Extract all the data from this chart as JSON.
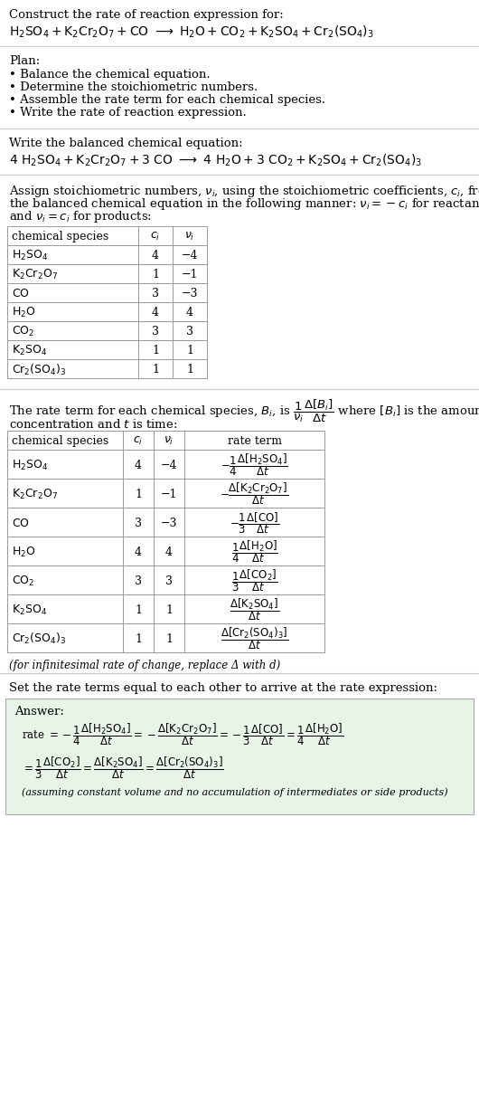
{
  "title_line1": "Construct the rate of reaction expression for:",
  "plan_header": "Plan:",
  "plan_items": [
    "• Balance the chemical equation.",
    "• Determine the stoichiometric numbers.",
    "• Assemble the rate term for each chemical species.",
    "• Write the rate of reaction expression."
  ],
  "balanced_header": "Write the balanced chemical equation:",
  "stoich_lines": [
    "Assign stoichiometric numbers, $\\nu_i$, using the stoichiometric coefficients, $c_i$, from",
    "the balanced chemical equation in the following manner: $\\nu_i = -c_i$ for reactants",
    "and $\\nu_i = c_i$ for products:"
  ],
  "table1_rows": [
    [
      "H_2SO_4",
      "4",
      "−4"
    ],
    [
      "K_2Cr_2O_7",
      "1",
      "−1"
    ],
    [
      "CO",
      "3",
      "−3"
    ],
    [
      "H_2O",
      "4",
      "4"
    ],
    [
      "CO_2",
      "3",
      "3"
    ],
    [
      "K_2SO_4",
      "1",
      "1"
    ],
    [
      "Cr_2(SO_4)_3",
      "1",
      "1"
    ]
  ],
  "footnote": "(for infinitesimal rate of change, replace Δ with d)",
  "set_equal_text": "Set the rate terms equal to each other to arrive at the rate expression:",
  "answer_box_color": "#e8f4e8",
  "answer_label": "Answer:",
  "answer_footnote": "(assuming constant volume and no accumulation of intermediates or side products)",
  "bg_color": "#ffffff",
  "text_color": "#000000",
  "line_color": "#aaaaaa",
  "font_size": 9.5
}
